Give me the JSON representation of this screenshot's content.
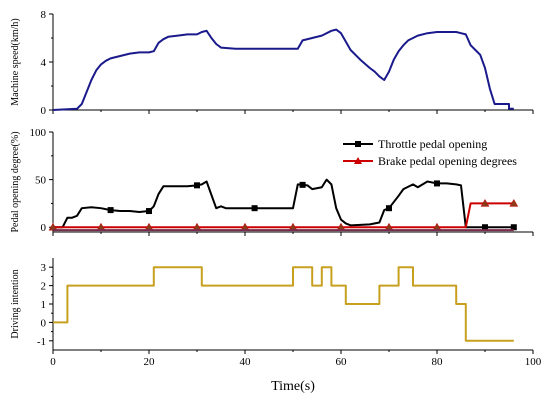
{
  "chart_data": [
    {
      "type": "line",
      "ylabel": "Machine speed(km/h)",
      "xlim": [
        0,
        100
      ],
      "ylim": [
        0,
        8
      ],
      "yticks": [
        "0",
        "4",
        "8"
      ],
      "show_x_tick_labels": false,
      "series": [
        {
          "color": "#1a1a8c",
          "marker": "none",
          "points": [
            [
              0,
              0
            ],
            [
              5,
              0.1
            ],
            [
              6,
              0.5
            ],
            [
              7,
              1.5
            ],
            [
              8,
              2.5
            ],
            [
              9,
              3.3
            ],
            [
              10,
              3.8
            ],
            [
              11,
              4.1
            ],
            [
              12,
              4.3
            ],
            [
              14,
              4.5
            ],
            [
              16,
              4.7
            ],
            [
              18,
              4.8
            ],
            [
              20,
              4.8
            ],
            [
              21,
              4.9
            ],
            [
              22,
              5.6
            ],
            [
              23,
              5.9
            ],
            [
              24,
              6.1
            ],
            [
              26,
              6.2
            ],
            [
              28,
              6.3
            ],
            [
              30,
              6.3
            ],
            [
              31,
              6.5
            ],
            [
              32,
              6.6
            ],
            [
              33,
              6.0
            ],
            [
              34,
              5.5
            ],
            [
              35,
              5.2
            ],
            [
              38,
              5.1
            ],
            [
              41,
              5.1
            ],
            [
              45,
              5.1
            ],
            [
              49,
              5.1
            ],
            [
              51,
              5.1
            ],
            [
              52,
              5.8
            ],
            [
              54,
              6.0
            ],
            [
              56,
              6.2
            ],
            [
              58,
              6.6
            ],
            [
              59,
              6.7
            ],
            [
              60,
              6.4
            ],
            [
              61,
              5.7
            ],
            [
              62,
              5.0
            ],
            [
              64,
              4.2
            ],
            [
              66,
              3.5
            ],
            [
              67,
              3.2
            ],
            [
              68,
              2.8
            ],
            [
              69,
              2.5
            ],
            [
              70,
              3.2
            ],
            [
              71,
              4.2
            ],
            [
              72,
              4.9
            ],
            [
              73,
              5.4
            ],
            [
              74,
              5.8
            ],
            [
              76,
              6.2
            ],
            [
              78,
              6.4
            ],
            [
              80,
              6.5
            ],
            [
              84,
              6.5
            ],
            [
              85,
              6.4
            ],
            [
              86,
              6.3
            ],
            [
              87,
              5.4
            ],
            [
              88,
              5.0
            ],
            [
              89,
              4.6
            ],
            [
              90,
              3.5
            ],
            [
              91,
              1.8
            ],
            [
              92,
              0.5
            ],
            [
              93,
              0.5
            ],
            [
              94,
              0.5
            ],
            [
              95,
              0.5
            ],
            [
              95,
              0.1
            ],
            [
              96,
              0.1
            ]
          ]
        }
      ]
    },
    {
      "type": "line",
      "ylabel": "Pedal opening degree(%)",
      "xlim": [
        0,
        100
      ],
      "ylim": [
        -5,
        100
      ],
      "yticks": [
        "0",
        "50",
        "100"
      ],
      "show_x_tick_labels": false,
      "legend_position": "top-right",
      "series": [
        {
          "name": "Throttle pedal opening",
          "color": "#000000",
          "marker": "square",
          "marker_x": [
            12,
            20,
            30,
            42,
            52,
            70,
            80,
            90,
            96
          ],
          "points": [
            [
              0,
              0
            ],
            [
              2,
              0
            ],
            [
              3,
              10
            ],
            [
              4,
              10
            ],
            [
              5,
              12
            ],
            [
              6,
              20
            ],
            [
              8,
              21
            ],
            [
              10,
              20
            ],
            [
              12,
              18
            ],
            [
              14,
              17
            ],
            [
              16,
              17
            ],
            [
              18,
              16
            ],
            [
              20,
              17
            ],
            [
              21,
              22
            ],
            [
              22,
              35
            ],
            [
              23,
              43
            ],
            [
              26,
              43
            ],
            [
              28,
              43
            ],
            [
              30,
              44
            ],
            [
              31,
              45
            ],
            [
              32,
              48
            ],
            [
              33,
              34
            ],
            [
              34,
              20
            ],
            [
              35,
              22
            ],
            [
              36,
              20
            ],
            [
              40,
              20
            ],
            [
              45,
              20
            ],
            [
              50,
              20
            ],
            [
              51,
              45
            ],
            [
              53,
              44
            ],
            [
              54,
              40
            ],
            [
              56,
              42
            ],
            [
              57,
              50
            ],
            [
              58,
              45
            ],
            [
              59,
              20
            ],
            [
              60,
              8
            ],
            [
              61,
              4
            ],
            [
              62,
              2
            ],
            [
              66,
              3
            ],
            [
              68,
              5
            ],
            [
              69,
              18
            ],
            [
              70,
              20
            ],
            [
              72,
              33
            ],
            [
              73,
              40
            ],
            [
              75,
              45
            ],
            [
              76,
              42
            ],
            [
              78,
              48
            ],
            [
              80,
              46
            ],
            [
              82,
              46
            ],
            [
              84,
              45
            ],
            [
              85,
              44
            ],
            [
              86,
              0
            ],
            [
              90,
              0
            ],
            [
              96,
              0
            ]
          ]
        },
        {
          "name": "Brake pedal opening degrees",
          "color": "#cc0000",
          "marker": "triangle",
          "marker_x": [
            0,
            10,
            20,
            30,
            40,
            50,
            60,
            70,
            80,
            90,
            96
          ],
          "points": [
            [
              0,
              0
            ],
            [
              86,
              0
            ],
            [
              87,
              25
            ],
            [
              96,
              25
            ]
          ]
        },
        {
          "color": "#7a2a4a",
          "marker": "none",
          "points": [
            [
              0,
              -3
            ],
            [
              96,
              -3
            ]
          ]
        }
      ]
    },
    {
      "type": "line",
      "ylabel": "Driving intention",
      "xlabel": "Time(s)",
      "xlim": [
        0,
        100
      ],
      "ylim": [
        -1.5,
        3.5
      ],
      "xticks": [
        "0",
        "20",
        "40",
        "60",
        "80",
        "100"
      ],
      "yticks": [
        "-1",
        "0",
        "1",
        "2",
        "3"
      ],
      "show_x_tick_labels": true,
      "series": [
        {
          "color": "#c8a020",
          "marker": "none",
          "step": true,
          "points": [
            [
              0,
              0
            ],
            [
              3,
              2
            ],
            [
              21,
              3
            ],
            [
              31,
              2
            ],
            [
              50,
              3
            ],
            [
              54,
              2
            ],
            [
              56,
              3
            ],
            [
              58,
              2
            ],
            [
              61,
              1
            ],
            [
              68,
              2
            ],
            [
              72,
              3
            ],
            [
              75,
              2
            ],
            [
              84,
              1
            ],
            [
              86,
              -1
            ],
            [
              96,
              -1
            ]
          ]
        }
      ]
    }
  ]
}
